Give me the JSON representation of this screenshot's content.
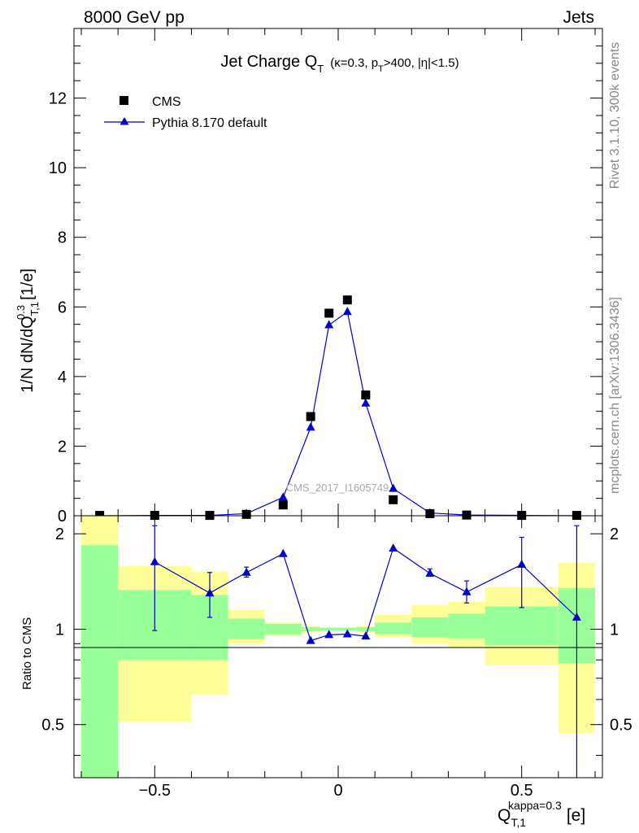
{
  "header": {
    "left": "8000 GeV pp",
    "right": "Jets"
  },
  "side_labels": {
    "rivet": "Rivet 3.1.10,  300k events",
    "mcplots": "mcplots.cern.ch [arXiv:1306.3436]"
  },
  "watermark": "CMS_2017_I1605749",
  "colors": {
    "data": "#000000",
    "mc": "#0000cc",
    "band_inner": "#99ff99",
    "band_outer": "#ffff99"
  },
  "chart_data": [
    {
      "type": "scatter",
      "title": "Jet Charge Q",
      "title_sub": "T",
      "title_cond_pre": "(κ=0.3, p",
      "title_cond_sub": "T",
      "title_cond_post": ">400, |η|<1.5)",
      "ylabel": "1/N dN/dQ",
      "ylabel_sup": "0.3",
      "ylabel_sub": "T,1",
      "ylabel_unit": "[1/e]",
      "xlim": [
        -0.72,
        0.72
      ],
      "ylim": [
        0,
        14
      ],
      "yticks": [
        0,
        2,
        4,
        6,
        8,
        10,
        12
      ],
      "legend_position": "top-left",
      "series": [
        {
          "name": "CMS",
          "marker": "square",
          "x": [
            -0.65,
            -0.5,
            -0.35,
            -0.25,
            -0.15,
            -0.075,
            -0.025,
            0.025,
            0.075,
            0.15,
            0.25,
            0.35,
            0.5,
            0.65
          ],
          "y": [
            0.01,
            0.01,
            0.01,
            0.04,
            0.31,
            2.85,
            5.82,
            6.2,
            3.47,
            0.46,
            0.06,
            0.02,
            0.01,
            0.01
          ]
        },
        {
          "name": "Pythia 8.170 default",
          "marker": "triangle-line",
          "x": [
            -0.65,
            -0.5,
            -0.35,
            -0.25,
            -0.15,
            -0.075,
            -0.025,
            0.025,
            0.075,
            0.15,
            0.25,
            0.35,
            0.5,
            0.65
          ],
          "y": [
            0.0,
            0.01,
            0.01,
            0.06,
            0.53,
            2.54,
            5.48,
            5.86,
            3.23,
            0.78,
            0.08,
            0.02,
            0.01,
            0.0
          ]
        }
      ]
    },
    {
      "type": "line",
      "ylabel": "Ratio to CMS",
      "xlabel": "Q",
      "xlabel_sup": "kappa=0.3",
      "xlabel_sub": "T,1",
      "xlabel_unit": "[e]",
      "xlim": [
        -0.72,
        0.72
      ],
      "ylim": [
        0.34,
        2.28
      ],
      "yscale": "log",
      "xticks": [
        -0.5,
        0,
        0.5
      ],
      "xtick_labels": [
        "−0.5",
        "0",
        "0.5"
      ],
      "yticks": [
        0.5,
        1,
        2
      ],
      "ytick_labels": [
        "0.5",
        "1",
        "2"
      ],
      "bands": {
        "edges": [
          -0.7,
          -0.6,
          -0.4,
          -0.3,
          -0.2,
          -0.1,
          -0.05,
          0.0,
          0.05,
          0.1,
          0.2,
          0.3,
          0.4,
          0.6,
          0.7
        ],
        "inner_low": [
          0.34,
          0.8,
          0.8,
          0.93,
          0.96,
          0.985,
          0.99,
          0.99,
          0.985,
          0.965,
          0.945,
          0.935,
          0.89,
          0.78
        ],
        "inner_high": [
          1.84,
          1.33,
          1.28,
          1.08,
          1.04,
          1.015,
          1.01,
          1.01,
          1.015,
          1.05,
          1.09,
          1.12,
          1.18,
          1.35
        ],
        "outer_low": [
          0.34,
          0.51,
          0.62,
          0.9,
          0.955,
          0.98,
          0.985,
          0.985,
          0.98,
          0.945,
          0.9,
          0.88,
          0.77,
          0.47
        ],
        "outer_high": [
          2.28,
          1.58,
          1.52,
          1.15,
          1.05,
          1.02,
          1.015,
          1.015,
          1.02,
          1.11,
          1.19,
          1.22,
          1.36,
          1.62
        ]
      },
      "series": [
        {
          "name": "Pythia 8.170 default",
          "x": [
            -0.5,
            -0.35,
            -0.25,
            -0.15,
            -0.075,
            -0.025,
            0.025,
            0.075,
            0.15,
            0.25,
            0.35,
            0.5,
            0.65
          ],
          "y": [
            1.63,
            1.3,
            1.51,
            1.73,
            0.92,
            0.96,
            0.965,
            0.95,
            1.8,
            1.5,
            1.31,
            1.6,
            1.09
          ],
          "err_low": [
            0.99,
            1.09,
            1.46,
            1.73,
            0.92,
            0.96,
            0.965,
            0.95,
            1.8,
            1.47,
            1.21,
            1.17,
            0.34
          ],
          "err_high": [
            2.12,
            1.51,
            1.57,
            1.73,
            0.92,
            0.96,
            0.965,
            0.95,
            1.8,
            1.55,
            1.42,
            1.95,
            2.12
          ]
        }
      ]
    }
  ]
}
